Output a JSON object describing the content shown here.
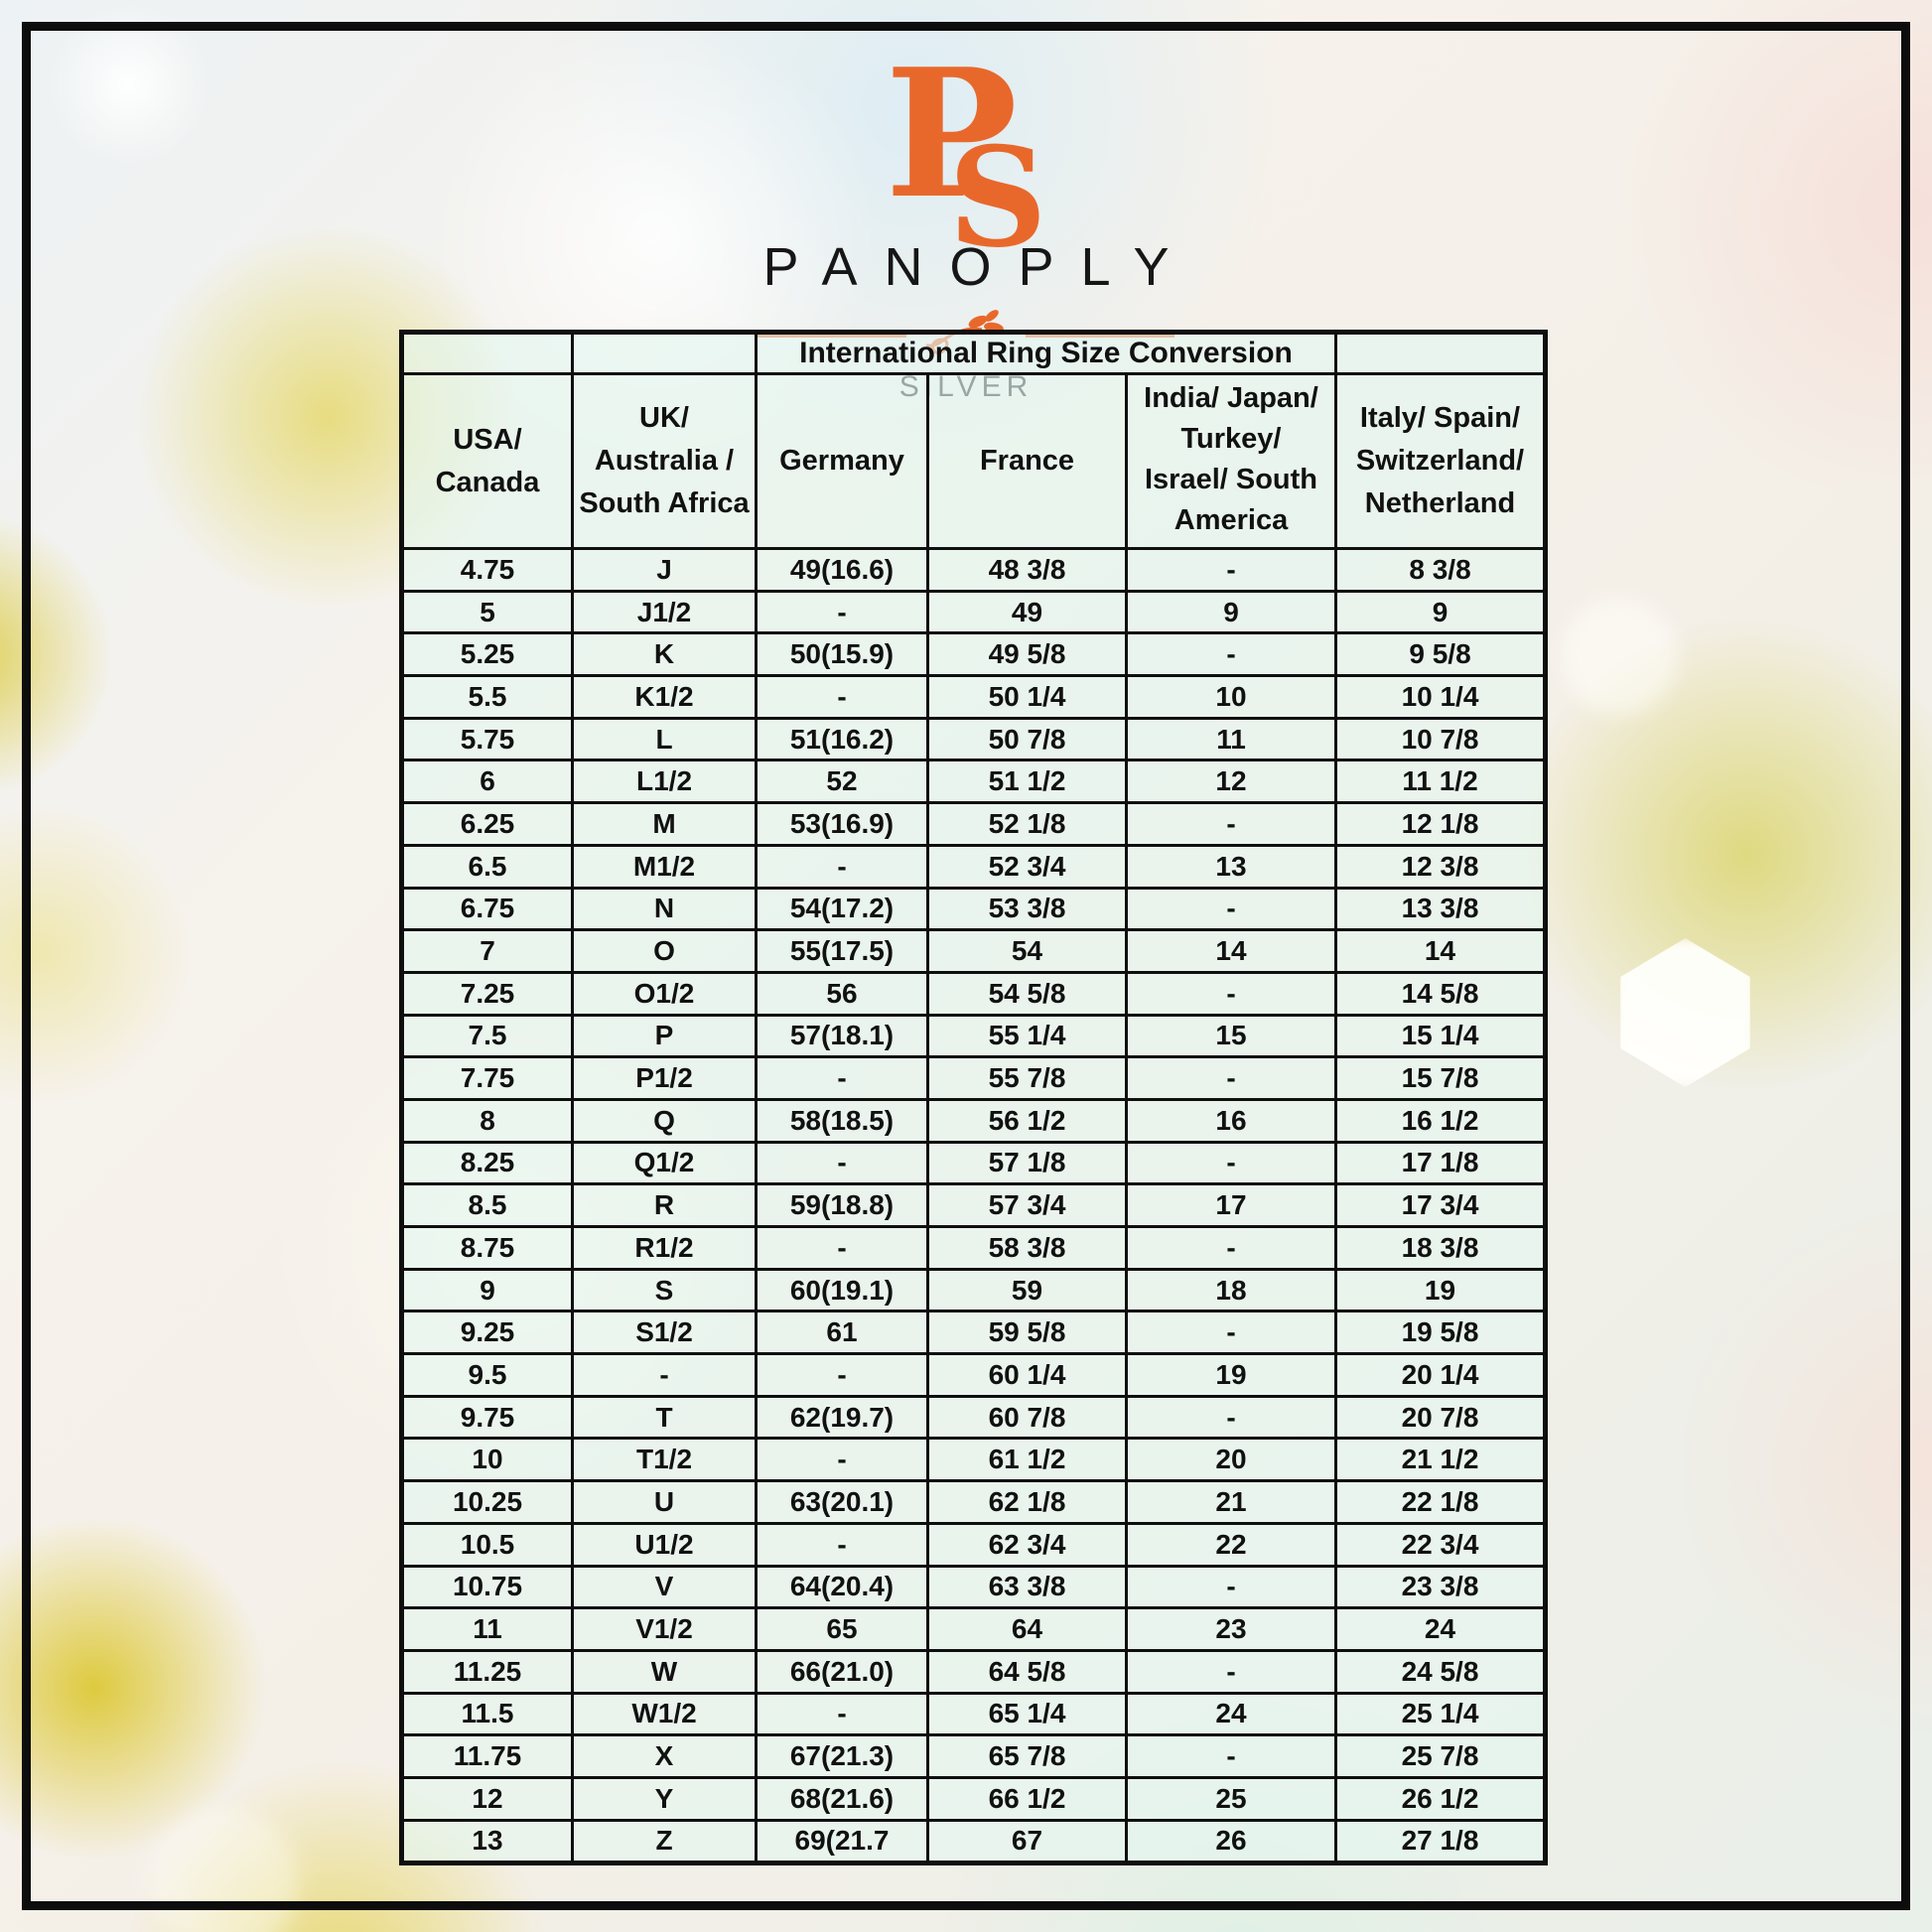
{
  "brand": {
    "monogram": "PS",
    "name": "PANOPLY",
    "subtitle": "SILVER",
    "accent_color": "#E8682B"
  },
  "icons": {
    "divider_ornament": "olive-branch-flourish"
  },
  "colors": {
    "frame": "#0d0d0d",
    "table_fill": "#E3F7F1",
    "text": "#111111"
  },
  "table": {
    "title": "International Ring Size Conversion",
    "columns": [
      "USA/\nCanada",
      "UK/\nAustralia /\nSouth Africa",
      "Germany",
      "France",
      "India/ Japan/\nTurkey/\nIsrael/ South\nAmerica",
      "Italy/ Spain/\nSwitzerland/\nNetherland"
    ],
    "rows": [
      [
        "4.75",
        "J",
        "49(16.6)",
        "48 3/8",
        "-",
        "8 3/8"
      ],
      [
        "5",
        "J1/2",
        "-",
        "49",
        "9",
        "9"
      ],
      [
        "5.25",
        "K",
        "50(15.9)",
        "49 5/8",
        "-",
        "9 5/8"
      ],
      [
        "5.5",
        "K1/2",
        "-",
        "50 1/4",
        "10",
        "10 1/4"
      ],
      [
        "5.75",
        "L",
        "51(16.2)",
        "50 7/8",
        "11",
        "10 7/8"
      ],
      [
        "6",
        "L1/2",
        "52",
        "51 1/2",
        "12",
        "11 1/2"
      ],
      [
        "6.25",
        "M",
        "53(16.9)",
        "52 1/8",
        "-",
        "12 1/8"
      ],
      [
        "6.5",
        "M1/2",
        "-",
        "52 3/4",
        "13",
        "12 3/8"
      ],
      [
        "6.75",
        "N",
        "54(17.2)",
        "53 3/8",
        "-",
        "13 3/8"
      ],
      [
        "7",
        "O",
        "55(17.5)",
        "54",
        "14",
        "14"
      ],
      [
        "7.25",
        "O1/2",
        "56",
        "54 5/8",
        "-",
        "14 5/8"
      ],
      [
        "7.5",
        "P",
        "57(18.1)",
        "55 1/4",
        "15",
        "15 1/4"
      ],
      [
        "7.75",
        "P1/2",
        "-",
        "55 7/8",
        "-",
        "15 7/8"
      ],
      [
        "8",
        "Q",
        "58(18.5)",
        "56 1/2",
        "16",
        "16 1/2"
      ],
      [
        "8.25",
        "Q1/2",
        "-",
        "57 1/8",
        "-",
        "17 1/8"
      ],
      [
        "8.5",
        "R",
        "59(18.8)",
        "57 3/4",
        "17",
        "17 3/4"
      ],
      [
        "8.75",
        "R1/2",
        "-",
        "58 3/8",
        "-",
        "18 3/8"
      ],
      [
        "9",
        "S",
        "60(19.1)",
        "59",
        "18",
        "19"
      ],
      [
        "9.25",
        "S1/2",
        "61",
        "59 5/8",
        "-",
        "19 5/8"
      ],
      [
        "9.5",
        "-",
        "-",
        "60 1/4",
        "19",
        "20 1/4"
      ],
      [
        "9.75",
        "T",
        "62(19.7)",
        "60 7/8",
        "-",
        "20 7/8"
      ],
      [
        "10",
        "T1/2",
        "-",
        "61 1/2",
        "20",
        "21 1/2"
      ],
      [
        "10.25",
        "U",
        "63(20.1)",
        "62 1/8",
        "21",
        "22 1/8"
      ],
      [
        "10.5",
        "U1/2",
        "-",
        "62 3/4",
        "22",
        "22 3/4"
      ],
      [
        "10.75",
        "V",
        "64(20.4)",
        "63 3/8",
        "-",
        "23 3/8"
      ],
      [
        "11",
        "V1/2",
        "65",
        "64",
        "23",
        "24"
      ],
      [
        "11.25",
        "W",
        "66(21.0)",
        "64 5/8",
        "-",
        "24 5/8"
      ],
      [
        "11.5",
        "W1/2",
        "-",
        "65 1/4",
        "24",
        "25 1/4"
      ],
      [
        "11.75",
        "X",
        "67(21.3)",
        "65 7/8",
        "-",
        "25 7/8"
      ],
      [
        "12",
        "Y",
        "68(21.6)",
        "66 1/2",
        "25",
        "26 1/2"
      ],
      [
        "13",
        "Z",
        "69(21.7",
        "67",
        "26",
        "27 1/8"
      ]
    ]
  }
}
